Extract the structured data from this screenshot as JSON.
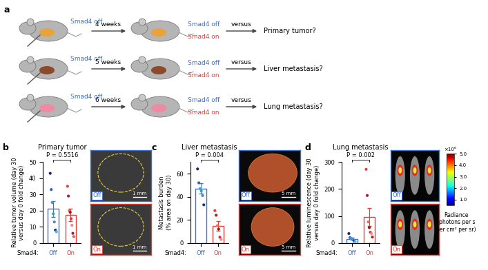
{
  "panel_labels": [
    "a",
    "b",
    "c",
    "d"
  ],
  "schematic": {
    "rows": [
      {
        "before": "Smad4 off",
        "interval": "4 weeks",
        "after": [
          "Smad4 off",
          "Smad4 on"
        ],
        "comparison": "versus",
        "question": "Primary tumor?"
      },
      {
        "before": "Smad4 off",
        "interval": "5 weeks",
        "after": [
          "Smad4 off",
          "Smad4 on"
        ],
        "comparison": "versus",
        "question": "Liver metastasis?"
      },
      {
        "before": "Smad4 off",
        "interval": "6 weeks",
        "after": [
          "Smad4 off",
          "Smad4 on"
        ],
        "comparison": "versus",
        "question": "Lung metastasis?"
      }
    ]
  },
  "chart_data": [
    {
      "type": "bar",
      "title": "Primary tumor",
      "ylabel": "Relative tumor volume (day 30\nversus day 0 fold change)",
      "xlabel": "Smad4:",
      "categories": [
        "Off",
        "On"
      ],
      "values": [
        21.0,
        17.4
      ],
      "errors": [
        4.9,
        3.7
      ],
      "points": [
        [
          43,
          33,
          25,
          18,
          13,
          8,
          7
        ],
        [
          35,
          29,
          20,
          19,
          15,
          11,
          6,
          4
        ]
      ],
      "colors": [
        "#3b6fd0",
        "#e0403a"
      ],
      "ylim": [
        0,
        50
      ],
      "yticks": [
        0,
        10,
        20,
        30,
        40,
        50
      ],
      "annotation": "P = 0.5516",
      "images": {
        "labels": [
          "Off",
          "On"
        ],
        "scale_bar": "1 mm"
      }
    },
    {
      "type": "bar",
      "title": "Liver metastasis",
      "ylabel": "Metastasis burden\n(% area on day 30)",
      "xlabel": "Smad4:",
      "categories": [
        "Off",
        "On"
      ],
      "values": [
        47.0,
        14.5
      ],
      "errors": [
        4.5,
        4.2
      ],
      "points": [
        [
          64,
          52,
          47,
          45,
          41,
          33
        ],
        [
          28,
          24,
          15,
          12,
          5,
          3
        ]
      ],
      "colors": [
        "#3b6fd0",
        "#e0403a"
      ],
      "ylim": [
        0,
        70
      ],
      "yticks": [
        0,
        20,
        40,
        60
      ],
      "annotation": "P = 0.004",
      "images": {
        "labels": [
          "Off",
          "On"
        ],
        "scale_bar": "5 mm"
      }
    },
    {
      "type": "bar",
      "title": "Lung metastasis",
      "ylabel": "Relative luminescence (day 30\nversus day 0 fold change)",
      "xlabel": "Smad4:",
      "categories": [
        "Off",
        "On"
      ],
      "values": [
        16.0,
        97.3
      ],
      "errors": [
        3.7,
        33.0
      ],
      "points": [
        [
          35,
          20,
          18,
          15,
          12,
          7,
          5
        ],
        [
          273,
          176,
          78,
          57,
          40,
          35,
          22
        ]
      ],
      "colors": [
        "#3b6fd0",
        "#e0403a"
      ],
      "ylim": [
        0,
        300
      ],
      "yticks": [
        0,
        100,
        200,
        300
      ],
      "annotation": "P = 0.002",
      "images": {
        "labels": [
          "Off",
          "On"
        ]
      },
      "colorbar": {
        "label": "Radiance\n(photons per s\nper cm² per sr)",
        "range": [
          0.5,
          5.0
        ],
        "ticks": [
          {
            "value": 1.0,
            "label": "1.0"
          },
          {
            "value": 2.0,
            "label": "2.0"
          },
          {
            "value": 3.0,
            "label": "3.0"
          },
          {
            "value": 4.0,
            "label": "4.0"
          },
          {
            "value": 5.0,
            "label": "5.0"
          }
        ],
        "multiplier": "×10⁶"
      }
    }
  ]
}
